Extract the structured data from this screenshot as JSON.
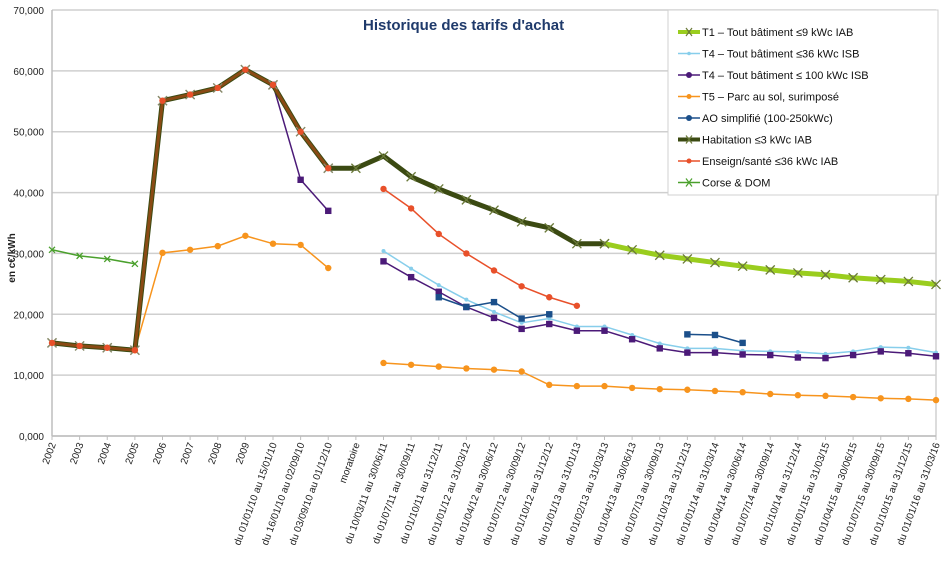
{
  "chart_data": {
    "type": "line",
    "title": "Historique des tarifs d'achat",
    "xlabel": "",
    "ylabel": "en c€/kWh",
    "ylim": [
      0,
      70000
    ],
    "yticks": [
      0,
      10000,
      20000,
      30000,
      40000,
      50000,
      60000,
      70000
    ],
    "ytick_labels": [
      "0,000",
      "10,000",
      "20,000",
      "30,000",
      "40,000",
      "50,000",
      "60,000",
      "70,000"
    ],
    "grid": true,
    "legend_position": "top-right",
    "categories": [
      "2002",
      "2003",
      "2004",
      "2005",
      "2006",
      "2007",
      "2008",
      "2009",
      "du 01/01/10 au 15/01/10",
      "du 16/01/10 au 02/09/10",
      "du 03/09/10 au 01/12/10",
      "moratoire",
      "du 10/03/11 au 30/06/11",
      "du 01/07/11 au 30/09/11",
      "du 01/10/11 au 31/12/11",
      "du 01/01/12 au 31/03/12",
      "du 01/04/12 au 30/06/12",
      "du 01/07/12 au 30/09/12",
      "du 01/10/12 au 31/12/12",
      "du 01/01/13 au 31/01/13",
      "du 01/02/13 au 31/03/13",
      "du 01/04/13 au 30/06/13",
      "du 01/07/13 au 30/09/13",
      "du 01/10/13 au 31/12/13",
      "du 01/01/14 au 31/03/14",
      "du 01/04/14 au 30/06/14",
      "du 01/07/14 au 30/09/14",
      "du 01/10/14 au 31/12/14",
      "du 01/01/15 au 31/03/15",
      "du 01/04/15 au 30/06/15",
      "du 01/07/15 au 30/09/15",
      "du 01/10/15 au 31/12/15",
      "du 01/01/16 au 31/03/16"
    ],
    "series": [
      {
        "name": "T1 – Tout bâtiment ≤9 kWc IAB",
        "color": "#9acd1e",
        "marker": "x",
        "thick": true,
        "values": [
          null,
          null,
          null,
          null,
          null,
          null,
          null,
          null,
          null,
          null,
          null,
          null,
          null,
          null,
          null,
          null,
          null,
          null,
          null,
          null,
          31600,
          30600,
          29700,
          29100,
          28500,
          27900,
          27300,
          26800,
          26500,
          26000,
          25700,
          25400,
          24900
        ]
      },
      {
        "name": "T4 – Tout bâtiment ≤36 kWc ISB",
        "color": "#87ceeb",
        "marker": "dot-small",
        "thick": false,
        "values": [
          null,
          null,
          null,
          null,
          null,
          null,
          null,
          null,
          null,
          null,
          null,
          null,
          30400,
          27500,
          24800,
          22400,
          20400,
          18600,
          19300,
          18000,
          18000,
          16600,
          15200,
          14400,
          14400,
          14000,
          13900,
          13800,
          13500,
          13900,
          14600,
          14500,
          13700
        ]
      },
      {
        "name": "T4 – Tout bâtiment ≤ 100 kWc ISB",
        "color": "#4b1a78",
        "marker": "square",
        "thick": false,
        "values": [
          null,
          null,
          null,
          null,
          null,
          null,
          null,
          null,
          57700,
          42100,
          37000,
          null,
          28700,
          26100,
          23700,
          21200,
          19400,
          17600,
          18400,
          17300,
          17300,
          15900,
          14400,
          13700,
          13700,
          13400,
          13300,
          12900,
          12800,
          13300,
          13900,
          13600,
          13100
        ]
      },
      {
        "name": "T5 – Parc au sol, surimposé",
        "color": "#f7941d",
        "marker": "dot",
        "thick": false,
        "values": [
          null,
          null,
          null,
          14100,
          30100,
          30600,
          31200,
          32900,
          31600,
          31400,
          27600,
          null,
          12000,
          11700,
          11400,
          11100,
          10900,
          10600,
          8400,
          8200,
          8200,
          7900,
          7700,
          7600,
          7400,
          7200,
          6900,
          6700,
          6600,
          6400,
          6200,
          6100,
          5900
        ]
      },
      {
        "name": "AO simplifié (100-250kWc)",
        "color": "#1b4f8a",
        "marker": "square",
        "thick": false,
        "values": [
          null,
          null,
          null,
          null,
          null,
          null,
          null,
          null,
          null,
          null,
          null,
          null,
          null,
          null,
          22800,
          21200,
          22000,
          19300,
          20000,
          null,
          null,
          null,
          null,
          16700,
          16600,
          15300,
          null,
          null,
          null,
          null,
          null,
          null,
          null
        ]
      },
      {
        "name": "Habitation ≤3 kWc IAB",
        "color": "#3b4a12",
        "marker": "x",
        "thick": true,
        "values": [
          15300,
          14800,
          14500,
          14100,
          55100,
          56100,
          57200,
          60200,
          57700,
          50000,
          44000,
          44000,
          46000,
          42600,
          40600,
          38800,
          37100,
          35200,
          34200,
          31600,
          31600,
          null,
          null,
          null,
          null,
          null,
          null,
          null,
          null,
          null,
          null,
          null,
          null
        ]
      },
      {
        "name": "Enseign/santé ≤36 kWc IAB",
        "color": "#e8502a",
        "marker": "dot",
        "thick": false,
        "values": [
          15300,
          14800,
          14500,
          14100,
          55100,
          56100,
          57200,
          60200,
          57700,
          50000,
          44000,
          null,
          40600,
          37400,
          33200,
          30000,
          27200,
          24600,
          22800,
          21400,
          null,
          null,
          null,
          null,
          null,
          null,
          null,
          null,
          null,
          null,
          null,
          null,
          null
        ]
      },
      {
        "name": "Corse & DOM",
        "color": "#4aa02c",
        "marker": "x-small",
        "thick": false,
        "values": [
          30600,
          29600,
          29100,
          28300,
          null,
          null,
          null,
          null,
          null,
          null,
          null,
          null,
          null,
          null,
          null,
          null,
          null,
          null,
          null,
          null,
          null,
          null,
          null,
          null,
          null,
          null,
          null,
          null,
          null,
          null,
          null,
          null,
          null
        ]
      }
    ]
  }
}
